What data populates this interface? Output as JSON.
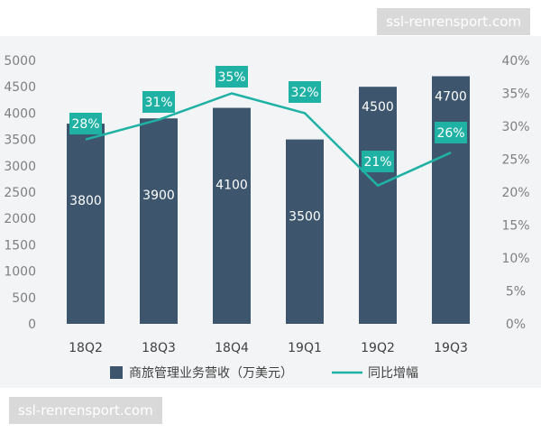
{
  "watermark_top": "ssl-renrensport.com",
  "watermark_bottom": "ssl-renrensport.com",
  "chart_data": {
    "type": "bar",
    "categories": [
      "18Q2",
      "18Q3",
      "18Q4",
      "19Q1",
      "19Q2",
      "19Q3"
    ],
    "series": [
      {
        "name": "商旅管理业务营收（万美元）",
        "type": "bar",
        "axis": "left",
        "values": [
          3800,
          3900,
          4100,
          3500,
          4500,
          4700
        ],
        "labels": [
          "3800",
          "3900",
          "4100",
          "3500",
          "4500",
          "4700"
        ],
        "color": "#3d566e"
      },
      {
        "name": "同比增幅",
        "type": "line",
        "axis": "right",
        "values": [
          28,
          31,
          35,
          32,
          21,
          26
        ],
        "labels": [
          "28%",
          "31%",
          "35%",
          "32%",
          "21%",
          "26%"
        ],
        "color": "#1fb2a4"
      }
    ],
    "y_left": {
      "min": 0,
      "max": 5000,
      "ticks": [
        "0",
        "500",
        "1000",
        "1500",
        "2000",
        "2500",
        "3000",
        "3500",
        "4000",
        "4500",
        "5000"
      ]
    },
    "y_right": {
      "min": 0,
      "max": 40,
      "ticks": [
        "0%",
        "5%",
        "10%",
        "15%",
        "20%",
        "25%",
        "30%",
        "35%",
        "40%"
      ]
    },
    "grid": false,
    "legend_position": "bottom"
  }
}
